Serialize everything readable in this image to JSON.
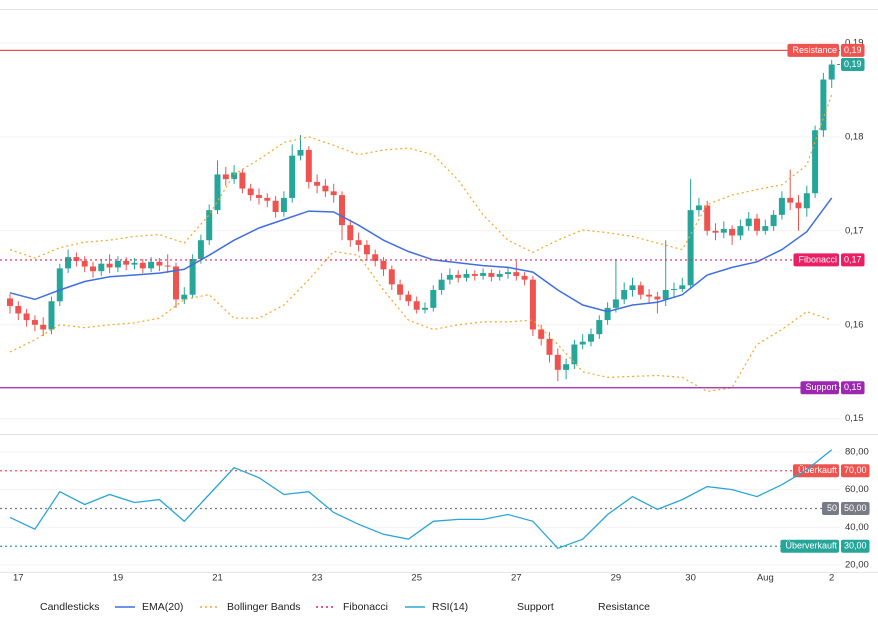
{
  "chart_data": [
    {
      "type": "candlestick",
      "categories": [
        null,
        "17",
        null,
        null,
        null,
        null,
        null,
        null,
        null,
        null,
        null,
        null,
        null,
        "19",
        null,
        null,
        null,
        null,
        null,
        null,
        null,
        null,
        null,
        null,
        null,
        "21",
        null,
        null,
        null,
        null,
        null,
        null,
        null,
        null,
        null,
        null,
        null,
        "23",
        null,
        null,
        null,
        null,
        null,
        null,
        null,
        null,
        null,
        null,
        null,
        "25",
        null,
        null,
        null,
        null,
        null,
        null,
        null,
        null,
        null,
        null,
        null,
        "27",
        null,
        null,
        null,
        null,
        null,
        null,
        null,
        null,
        null,
        null,
        null,
        "29",
        null,
        null,
        null,
        null,
        null,
        null,
        null,
        null,
        "30",
        null,
        null,
        null,
        null,
        null,
        null,
        null,
        null,
        "Aug",
        null,
        null,
        null,
        null,
        null,
        null,
        null,
        "2"
      ],
      "ylim": [
        0.1488,
        0.1935
      ],
      "yticks": [
        {
          "value": 0.15,
          "label": "0,15"
        },
        {
          "value": 0.16,
          "label": "0,16"
        },
        {
          "value": 0.17,
          "label": "0,17"
        },
        {
          "value": 0.18,
          "label": "0,18"
        },
        {
          "value": 0.19,
          "label": "0,19"
        }
      ],
      "series": [
        {
          "name": "Candlesticks",
          "type": "candlestick",
          "up_color": "#26a69a",
          "down_color": "#ef5350",
          "open": [
            0.1628,
            0.162,
            0.1612,
            0.1605,
            0.16,
            0.1595,
            0.1625,
            0.166,
            0.1672,
            0.1668,
            0.1662,
            0.1657,
            0.1665,
            0.1661,
            0.1668,
            0.1664,
            0.1666,
            0.166,
            0.1667,
            0.1663,
            0.1662,
            0.1627,
            0.1632,
            0.167,
            0.169,
            0.1722,
            0.176,
            0.1755,
            0.1762,
            0.1745,
            0.1738,
            0.1735,
            0.1732,
            0.172,
            0.1735,
            0.178,
            0.1786,
            0.1752,
            0.1748,
            0.1742,
            0.1738,
            0.1706,
            0.169,
            0.1685,
            0.1675,
            0.1668,
            0.1659,
            0.1643,
            0.1632,
            0.1625,
            0.1616,
            0.1618,
            0.1637,
            0.1648,
            0.1653,
            0.165,
            0.1654,
            0.1652,
            0.1655,
            0.1651,
            0.1654,
            0.1656,
            0.1652,
            0.1648,
            0.1595,
            0.1585,
            0.1568,
            0.1552,
            0.1558,
            0.1579,
            0.1582,
            0.159,
            0.1605,
            0.1618,
            0.1627,
            0.1637,
            0.1642,
            0.1632,
            0.163,
            0.1627,
            0.1637,
            0.1638,
            0.1642,
            0.1722,
            0.1727,
            0.17,
            0.1698,
            0.1702,
            0.1695,
            0.1705,
            0.1713,
            0.17,
            0.1705,
            0.1717,
            0.1735,
            0.173,
            0.1724,
            0.174,
            0.1807,
            0.1861
          ],
          "high": [
            0.1633,
            0.1625,
            0.1617,
            0.161,
            0.1608,
            0.163,
            0.1665,
            0.168,
            0.1677,
            0.1673,
            0.1667,
            0.167,
            0.1675,
            0.1673,
            0.1672,
            0.1671,
            0.167,
            0.1672,
            0.1671,
            0.1675,
            0.1666,
            0.164,
            0.1675,
            0.1696,
            0.1728,
            0.1775,
            0.1768,
            0.177,
            0.1766,
            0.175,
            0.1745,
            0.174,
            0.1737,
            0.1742,
            0.1792,
            0.1802,
            0.179,
            0.176,
            0.1755,
            0.175,
            0.1742,
            0.1712,
            0.1698,
            0.169,
            0.168,
            0.1672,
            0.1663,
            0.1648,
            0.1636,
            0.163,
            0.1624,
            0.1642,
            0.1655,
            0.166,
            0.1658,
            0.1659,
            0.1658,
            0.166,
            0.1659,
            0.1658,
            0.1662,
            0.1668,
            0.1656,
            0.1652,
            0.16,
            0.1592,
            0.1575,
            0.1564,
            0.1584,
            0.159,
            0.1596,
            0.161,
            0.1624,
            0.167,
            0.1645,
            0.165,
            0.1646,
            0.1638,
            0.1635,
            0.169,
            0.1645,
            0.165,
            0.1755,
            0.1735,
            0.1732,
            0.1708,
            0.171,
            0.1706,
            0.1712,
            0.172,
            0.1718,
            0.1712,
            0.1722,
            0.1742,
            0.1765,
            0.1738,
            0.1748,
            0.1812,
            0.1868,
            0.1882
          ],
          "low": [
            0.1612,
            0.1605,
            0.1598,
            0.1593,
            0.1588,
            0.159,
            0.162,
            0.1655,
            0.1662,
            0.1656,
            0.165,
            0.1652,
            0.1655,
            0.1656,
            0.1658,
            0.1659,
            0.1655,
            0.1656,
            0.1657,
            0.1655,
            0.1618,
            0.1622,
            0.1628,
            0.1665,
            0.1685,
            0.1718,
            0.1748,
            0.175,
            0.174,
            0.1732,
            0.1728,
            0.1725,
            0.1714,
            0.1715,
            0.173,
            0.1775,
            0.1745,
            0.174,
            0.1736,
            0.173,
            0.169,
            0.1683,
            0.1678,
            0.1668,
            0.1662,
            0.1652,
            0.1637,
            0.1626,
            0.162,
            0.1612,
            0.1612,
            0.1614,
            0.1632,
            0.1643,
            0.1645,
            0.1646,
            0.1647,
            0.1648,
            0.1646,
            0.1647,
            0.1649,
            0.1647,
            0.1642,
            0.1588,
            0.1578,
            0.156,
            0.154,
            0.1542,
            0.1553,
            0.1574,
            0.1577,
            0.1585,
            0.16,
            0.1613,
            0.1622,
            0.163,
            0.1627,
            0.1622,
            0.1612,
            0.162,
            0.163,
            0.1635,
            0.1638,
            0.1715,
            0.1695,
            0.169,
            0.1692,
            0.1685,
            0.169,
            0.17,
            0.1695,
            0.1696,
            0.17,
            0.1712,
            0.1722,
            0.17,
            0.1715,
            0.1735,
            0.18,
            0.1852
          ],
          "close": [
            0.162,
            0.1612,
            0.1605,
            0.16,
            0.1595,
            0.1625,
            0.166,
            0.1672,
            0.1668,
            0.1662,
            0.1657,
            0.1665,
            0.1661,
            0.1668,
            0.1664,
            0.1666,
            0.166,
            0.1667,
            0.1663,
            0.1662,
            0.1627,
            0.1632,
            0.167,
            0.169,
            0.1722,
            0.176,
            0.1755,
            0.1762,
            0.1745,
            0.1738,
            0.1735,
            0.1732,
            0.172,
            0.1735,
            0.178,
            0.1786,
            0.1752,
            0.1748,
            0.1742,
            0.1738,
            0.1706,
            0.169,
            0.1685,
            0.1675,
            0.1668,
            0.1659,
            0.1643,
            0.1632,
            0.1625,
            0.1616,
            0.1618,
            0.1637,
            0.1648,
            0.1653,
            0.165,
            0.1654,
            0.1652,
            0.1655,
            0.1651,
            0.1654,
            0.1656,
            0.1652,
            0.1648,
            0.1595,
            0.1585,
            0.1568,
            0.1552,
            0.1558,
            0.1579,
            0.1582,
            0.159,
            0.1605,
            0.1618,
            0.1627,
            0.1637,
            0.1642,
            0.1632,
            0.163,
            0.1627,
            0.1637,
            0.1638,
            0.1642,
            0.1722,
            0.1727,
            0.17,
            0.1698,
            0.1702,
            0.1695,
            0.1705,
            0.1713,
            0.17,
            0.1705,
            0.1717,
            0.1735,
            0.173,
            0.1724,
            0.174,
            0.1807,
            0.1861,
            0.1877
          ]
        },
        {
          "name": "EMA(20)",
          "type": "line",
          "color": "#3f6fe0",
          "style": "solid",
          "x": [
            0,
            3,
            6,
            9,
            12,
            15,
            18,
            21,
            24,
            27,
            30,
            33,
            36,
            39,
            42,
            45,
            48,
            51,
            54,
            57,
            60,
            63,
            66,
            69,
            72,
            75,
            78,
            81,
            84,
            87,
            90,
            93,
            96,
            99
          ],
          "values": [
            0.1634,
            0.1627,
            0.1637,
            0.1646,
            0.1651,
            0.1653,
            0.1655,
            0.1659,
            0.1674,
            0.169,
            0.1703,
            0.1712,
            0.1721,
            0.172,
            0.1706,
            0.169,
            0.1678,
            0.1669,
            0.1666,
            0.1663,
            0.1661,
            0.1656,
            0.1637,
            0.1621,
            0.1614,
            0.1621,
            0.1624,
            0.1632,
            0.1653,
            0.1661,
            0.1667,
            0.168,
            0.1699,
            0.1735
          ]
        },
        {
          "name": "Bollinger Bands",
          "type": "band",
          "color": "#f5a623",
          "style": "dotted",
          "x": [
            0,
            3,
            6,
            9,
            12,
            15,
            18,
            21,
            24,
            27,
            30,
            33,
            36,
            39,
            42,
            45,
            48,
            51,
            54,
            57,
            60,
            63,
            66,
            69,
            72,
            75,
            78,
            81,
            84,
            87,
            90,
            93,
            96,
            99
          ],
          "upper": [
            0.168,
            0.1671,
            0.1682,
            0.1688,
            0.169,
            0.1694,
            0.1696,
            0.1687,
            0.1717,
            0.176,
            0.1776,
            0.1794,
            0.18,
            0.1791,
            0.1781,
            0.1786,
            0.1788,
            0.1781,
            0.1754,
            0.1717,
            0.169,
            0.1677,
            0.169,
            0.1701,
            0.1698,
            0.1694,
            0.1687,
            0.168,
            0.1728,
            0.1738,
            0.1744,
            0.1749,
            0.177,
            0.1845
          ],
          "lower": [
            0.1571,
            0.1584,
            0.16,
            0.1597,
            0.16,
            0.1602,
            0.1607,
            0.1627,
            0.1632,
            0.1607,
            0.1607,
            0.1621,
            0.1648,
            0.1678,
            0.1674,
            0.1637,
            0.1605,
            0.1595,
            0.16,
            0.1603,
            0.1603,
            0.1605,
            0.1579,
            0.155,
            0.1544,
            0.1545,
            0.1546,
            0.1544,
            0.1529,
            0.1533,
            0.1579,
            0.1595,
            0.1614,
            0.1605
          ]
        }
      ],
      "levels": [
        {
          "name": "Resistance",
          "value": 0.1892,
          "label": "0,19",
          "color": "#ef5350",
          "style": "solid"
        },
        {
          "name": "Fibonacci",
          "value": 0.1669,
          "label": "0,17",
          "color": "#e91e63",
          "style": "dotted"
        },
        {
          "name": "Support",
          "value": 0.1533,
          "label": "0,15",
          "color": "#9c27b0",
          "style": "solid"
        }
      ],
      "last_price": {
        "value": 0.1877,
        "label": "0,19",
        "color": "#26a69a"
      }
    },
    {
      "type": "line",
      "ylim": [
        17.4,
        86.3
      ],
      "yticks": [
        {
          "value": 20,
          "label": "20,00"
        },
        {
          "value": 40,
          "label": "40,00"
        },
        {
          "value": 60,
          "label": "60,00"
        },
        {
          "value": 80,
          "label": "80,00"
        }
      ],
      "series": [
        {
          "name": "RSI(14)",
          "color": "#2aa5d8",
          "style": "solid",
          "x": [
            0,
            3,
            6,
            9,
            12,
            15,
            18,
            21,
            24,
            27,
            30,
            33,
            36,
            39,
            42,
            45,
            48,
            51,
            54,
            57,
            60,
            63,
            66,
            69,
            72,
            75,
            78,
            81,
            84,
            87,
            90,
            93,
            96,
            99
          ],
          "values": [
            45.3,
            39,
            58.9,
            52.1,
            57.4,
            53.2,
            54.7,
            43.2,
            57.4,
            71.6,
            66.3,
            57.4,
            58.9,
            47.9,
            41.6,
            36.3,
            33.7,
            43.2,
            44.2,
            44.2,
            46.8,
            43.2,
            28.9,
            33.7,
            46.8,
            56.3,
            49.5,
            54.7,
            61.6,
            60,
            56.3,
            62.6,
            70.5,
            81.1
          ]
        }
      ],
      "levels": [
        {
          "name": "Überkauft",
          "value": 70,
          "label": "70,00",
          "color": "#ef5350",
          "style": "dotted"
        },
        {
          "name": "50",
          "value": 50,
          "label": "50,00",
          "color": "#787b86",
          "style": "dotted"
        },
        {
          "name": "Überverkauft",
          "value": 30,
          "label": "30,00",
          "color": "#26a69a",
          "style": "dotted"
        }
      ]
    }
  ]
}
